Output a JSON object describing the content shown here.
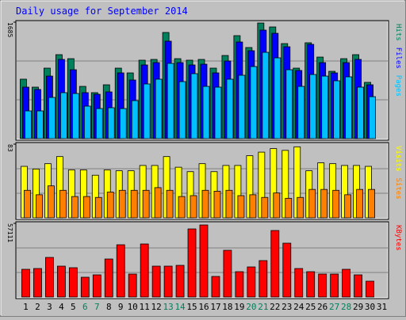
{
  "chart_data": [
    {
      "type": "bar",
      "title": "Daily usage for September 2014",
      "series": [
        {
          "name": "Hits",
          "color": "#00805c",
          "values": [
            860,
            745,
            1020,
            1215,
            1157,
            756,
            665,
            779,
            1020,
            951,
            1135,
            1146,
            1536,
            1157,
            1135,
            1146,
            1020,
            1203,
            1490,
            1318,
            1673,
            1616,
            1375,
            1020,
            1387,
            1180,
            974,
            1157,
            1215,
            814,
            0
          ]
        },
        {
          "name": "Files",
          "color": "#0000ff",
          "values": [
            745,
            711,
            905,
            1146,
            997,
            665,
            642,
            676,
            951,
            848,
            1066,
            1100,
            1410,
            1100,
            1066,
            1077,
            951,
            1123,
            1398,
            1272,
            1570,
            1524,
            1329,
            986,
            1364,
            1100,
            951,
            1100,
            1146,
            779,
            0
          ]
        },
        {
          "name": "Pages",
          "color": "#00c0ff",
          "values": [
            401,
            401,
            596,
            665,
            653,
            470,
            435,
            447,
            435,
            550,
            791,
            860,
            1089,
            825,
            940,
            756,
            745,
            860,
            917,
            1043,
            1249,
            1169,
            997,
            756,
            928,
            905,
            837,
            894,
            745,
            607,
            0
          ]
        }
      ],
      "ylim": [
        0,
        1685
      ],
      "yticks": [
        1685
      ]
    },
    {
      "type": "bar",
      "series": [
        {
          "name": "Visits",
          "color": "#ffff00",
          "values": [
            58,
            55,
            61,
            69,
            54,
            54,
            48,
            54,
            53,
            53,
            59,
            59,
            69,
            57,
            52,
            61,
            52,
            59,
            59,
            70,
            74,
            78,
            76,
            80,
            53,
            62,
            61,
            59,
            59,
            58,
            0
          ]
        },
        {
          "name": "Sites",
          "color": "#ff8000",
          "values": [
            31,
            26,
            36,
            31,
            24,
            24,
            23,
            29,
            31,
            31,
            31,
            34,
            31,
            24,
            25,
            31,
            30,
            31,
            25,
            26,
            23,
            28,
            22,
            23,
            32,
            32,
            31,
            26,
            32,
            32,
            0
          ]
        }
      ],
      "ylim": [
        0,
        83
      ],
      "yticks": [
        83
      ]
    },
    {
      "type": "bar",
      "categories": [
        "1",
        "2",
        "3",
        "4",
        "5",
        "6",
        "7",
        "8",
        "9",
        "10",
        "11",
        "12",
        "13",
        "14",
        "15",
        "16",
        "17",
        "18",
        "19",
        "20",
        "21",
        "22",
        "23",
        "24",
        "25",
        "26",
        "27",
        "28",
        "29",
        "30",
        "31"
      ],
      "category_colors": [
        "#000000",
        "#000000",
        "#000000",
        "#000000",
        "#000000",
        "#00805c",
        "#00805c",
        "#000000",
        "#000000",
        "#000000",
        "#000000",
        "#000000",
        "#00805c",
        "#00805c",
        "#000000",
        "#000000",
        "#000000",
        "#000000",
        "#000000",
        "#00805c",
        "#00805c",
        "#000000",
        "#000000",
        "#000000",
        "#000000",
        "#000000",
        "#00805c",
        "#00805c",
        "#000000",
        "#000000",
        "#000000"
      ],
      "series": [
        {
          "name": "KBytes",
          "color": "#ff0000",
          "values": [
            21490,
            22104,
            30700,
            23946,
            22718,
            15350,
            17192,
            29472,
            40524,
            17806,
            41138,
            23946,
            23946,
            24560,
            52804,
            55874,
            15964,
            36226,
            19648,
            23332,
            28244,
            51576,
            41752,
            22104,
            19648,
            17806,
            17806,
            21490,
            17192,
            12280,
            0
          ]
        }
      ],
      "ylim": [
        0,
        57111
      ],
      "yticks": [
        57111
      ]
    }
  ]
}
